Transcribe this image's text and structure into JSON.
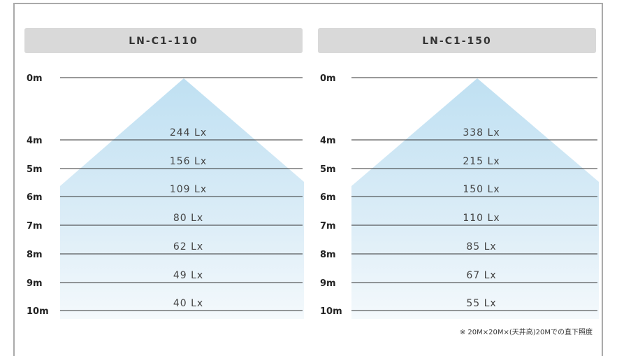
{
  "panels": [
    {
      "title": "LN-C1-110",
      "heights": [
        "0m",
        "4m",
        "5m",
        "6m",
        "7m",
        "8m",
        "9m",
        "10m"
      ],
      "lux": [
        "244 Lx",
        "156 Lx",
        "109 Lx",
        "80 Lx",
        "62 Lx",
        "49 Lx",
        "40 Lx"
      ]
    },
    {
      "title": "LN-C1-150",
      "heights": [
        "0m",
        "4m",
        "5m",
        "6m",
        "7m",
        "8m",
        "9m",
        "10m"
      ],
      "lux": [
        "338 Lx",
        "215 Lx",
        "150 Lx",
        "110 Lx",
        "85 Lx",
        "67 Lx",
        "55 Lx"
      ]
    }
  ],
  "note": "※ 20M×20M×(天井高)20Mでの直下照度"
}
